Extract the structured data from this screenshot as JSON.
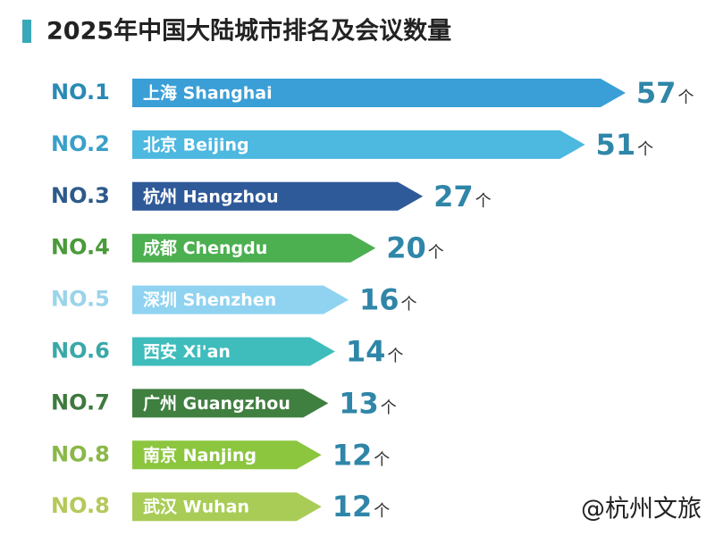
{
  "chart_data": {
    "type": "bar",
    "title": "2025年中国大陆城市排名及会议数量",
    "ranks": [
      "NO.1",
      "NO.2",
      "NO.3",
      "NO.4",
      "NO.5",
      "NO.6",
      "NO.7",
      "NO.8",
      "NO.8"
    ],
    "categories": [
      "上海 Shanghai",
      "北京 Beijing",
      "杭州 Hangzhou",
      "成都 Chengdu",
      "深圳 Shenzhen",
      "西安 Xi'an",
      "广州 Guangzhou",
      "南京 Nanjing",
      "武汉 Wuhan"
    ],
    "values": [
      57,
      51,
      27,
      20,
      16,
      14,
      13,
      12,
      12
    ],
    "unit": "个",
    "colors": [
      "#3a9fd6",
      "#4db8e0",
      "#2f5a9a",
      "#4caf50",
      "#8fd3f0",
      "#3fbcbc",
      "#3f7f3f",
      "#8cc63f",
      "#a8cc55"
    ],
    "rank_colors": [
      "#2a8ab5",
      "#3aa0c8",
      "#2d5a8a",
      "#4a9a3a",
      "#9ad4ea",
      "#3aa8a8",
      "#3e7a3e",
      "#8ab848",
      "#b5c95a"
    ],
    "value_color": "#2f86a8",
    "watermark": "@杭州文旅"
  }
}
